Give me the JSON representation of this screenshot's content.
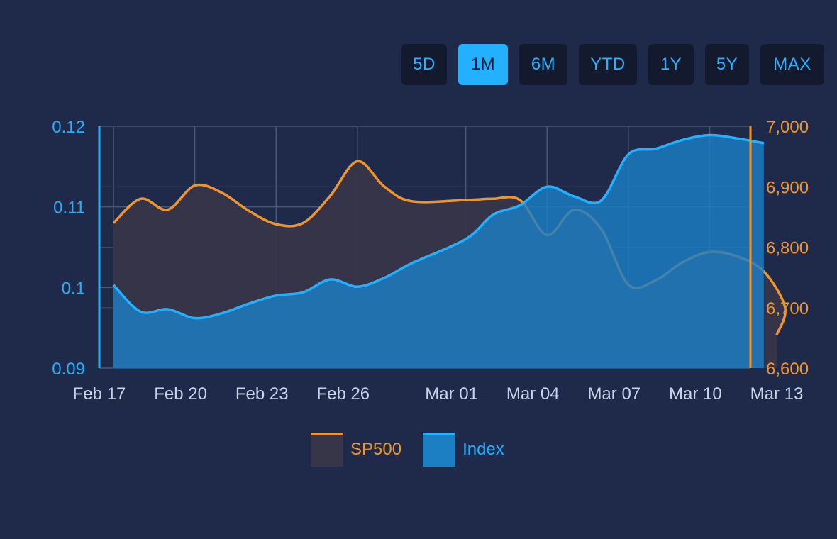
{
  "range_buttons": [
    {
      "label": "5D",
      "active": false
    },
    {
      "label": "1M",
      "active": true
    },
    {
      "label": "6M",
      "active": false
    },
    {
      "label": "YTD",
      "active": false
    },
    {
      "label": "1Y",
      "active": false
    },
    {
      "label": "5Y",
      "active": false
    },
    {
      "label": "MAX",
      "active": false
    }
  ],
  "colors": {
    "background": "#1f2a4b",
    "sp500_line": "#f0952e",
    "sp500_fill": "#373548",
    "index_line": "#22b0ff",
    "index_fill": "#1c7fc4",
    "grid": "#4a5578",
    "x_tick_text": "#c9d2e6"
  },
  "chart_data": {
    "type": "area",
    "title": "",
    "x_ticks": [
      "Feb 17",
      "Feb 20",
      "Feb 23",
      "Feb 26",
      "Mar 01",
      "Mar 04",
      "Mar 07",
      "Mar 10",
      "Mar 13"
    ],
    "x_range": [
      "Feb 17",
      "Mar 13"
    ],
    "y_left": {
      "ticks": [
        "0.09",
        "0.1",
        "0.11",
        "0.12"
      ],
      "range": [
        0.09,
        0.12
      ]
    },
    "y_right": {
      "ticks": [
        "6,600",
        "6,700",
        "6,800",
        "6,900",
        "7,000"
      ],
      "range": [
        6600,
        7000
      ]
    },
    "grid": true,
    "legend_position": "bottom",
    "series": [
      {
        "name": "SP500",
        "axis": "right",
        "x": [
          "Feb 17",
          "Feb 18",
          "Feb 19",
          "Feb 20",
          "Feb 21",
          "Feb 22",
          "Feb 23",
          "Feb 24",
          "Feb 25",
          "Feb 26",
          "Feb 27",
          "Feb 28",
          "Mar 01",
          "Mar 02",
          "Mar 03",
          "Mar 04",
          "Mar 05",
          "Mar 06",
          "Mar 07",
          "Mar 08",
          "Mar 09",
          "Mar 10",
          "Mar 11",
          "Mar 12"
        ],
        "values": [
          6840,
          6880,
          6862,
          6902,
          6890,
          6860,
          6838,
          6840,
          6885,
          6942,
          6900,
          6876,
          6878,
          6880,
          6878,
          6820,
          6862,
          6830,
          6738,
          6745,
          6775,
          6792,
          6785,
          6760
        ]
      },
      {
        "name": "Index",
        "axis": "left",
        "x": [
          "Feb 17",
          "Feb 18",
          "Feb 19",
          "Feb 20",
          "Feb 21",
          "Feb 22",
          "Feb 23",
          "Feb 24",
          "Feb 25",
          "Feb 26",
          "Feb 27",
          "Feb 28",
          "Mar 01",
          "Mar 02",
          "Mar 03",
          "Mar 04",
          "Mar 05",
          "Mar 06",
          "Mar 07",
          "Mar 08",
          "Mar 09",
          "Mar 10",
          "Mar 11",
          "Mar 12"
        ],
        "values": [
          0.1003,
          0.097,
          0.0973,
          0.0962,
          0.0968,
          0.098,
          0.099,
          0.0994,
          0.101,
          0.1001,
          0.1012,
          0.103,
          0.106,
          0.109,
          0.1102,
          0.1125,
          0.1113,
          0.1108,
          0.1165,
          0.1172,
          0.1183,
          0.1189,
          0.1185,
          0.1179
        ]
      }
    ]
  }
}
